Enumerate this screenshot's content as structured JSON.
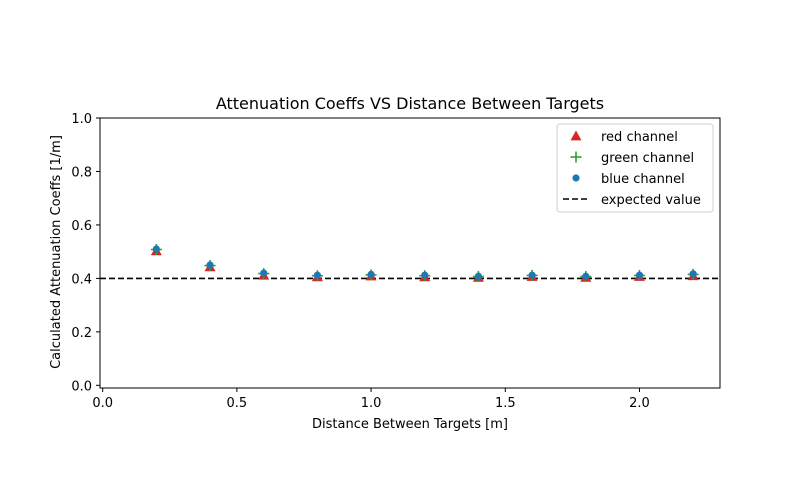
{
  "chart_data": {
    "type": "scatter",
    "title": "Attenuation Coeffs VS Distance Between Targets",
    "xlabel": "Distance Between Targets [m]",
    "ylabel": "Calculated Attenuation Coeffs [1/m]",
    "xlim": [
      -0.01,
      2.3
    ],
    "ylim": [
      -0.01,
      1.0
    ],
    "x_ticks": [
      "0.0",
      "0.5",
      "1.0",
      "1.5",
      "2.0"
    ],
    "y_ticks": [
      "0.0",
      "0.2",
      "0.4",
      "0.6",
      "0.8",
      "1.0"
    ],
    "grid": false,
    "legend_position": "upper right",
    "x": [
      0.2,
      0.4,
      0.6,
      0.8,
      1.0,
      1.2,
      1.4,
      1.6,
      1.8,
      2.0,
      2.2
    ],
    "series": [
      {
        "name": "red channel",
        "marker": "triangle",
        "color": "#d62728",
        "values": [
          0.503,
          0.443,
          0.412,
          0.406,
          0.409,
          0.406,
          0.404,
          0.407,
          0.404,
          0.407,
          0.41
        ]
      },
      {
        "name": "green channel",
        "marker": "plus",
        "color": "#2ca02c",
        "values": [
          0.508,
          0.448,
          0.418,
          0.41,
          0.413,
          0.41,
          0.407,
          0.411,
          0.407,
          0.411,
          0.415
        ]
      },
      {
        "name": "blue channel",
        "marker": "circle",
        "color": "#1f77b4",
        "values": [
          0.51,
          0.45,
          0.42,
          0.412,
          0.415,
          0.412,
          0.408,
          0.412,
          0.408,
          0.412,
          0.417
        ]
      }
    ],
    "reference_line": {
      "name": "expected value",
      "y": 0.4,
      "color": "#000000",
      "style": "dashed"
    }
  }
}
